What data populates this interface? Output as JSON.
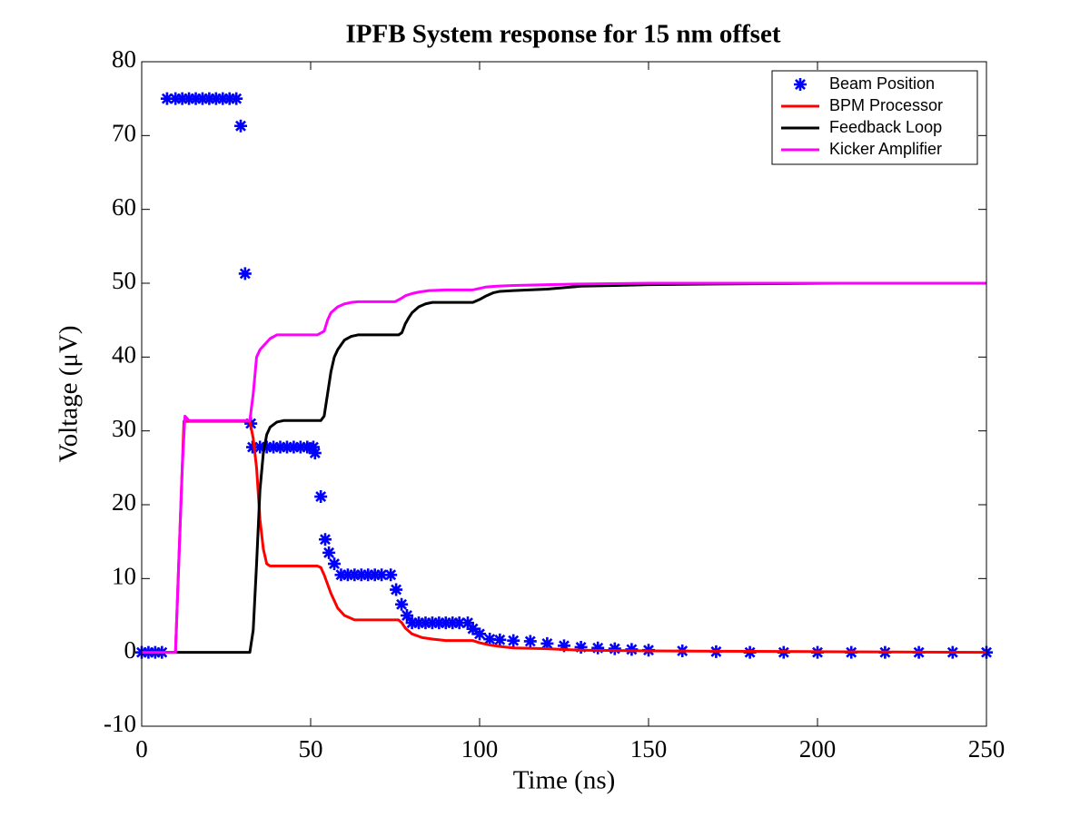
{
  "chart_data": {
    "type": "line",
    "title": "IPFB System response for 15 nm offset",
    "x_label": "Time (ns)",
    "y_label": "Voltage (μV)",
    "xlim": [
      0,
      250
    ],
    "xticks": [
      0,
      50,
      100,
      150,
      200,
      250
    ],
    "ylim": [
      -10,
      80
    ],
    "yticks": [
      -10,
      0,
      10,
      20,
      30,
      40,
      50,
      60,
      70,
      80
    ],
    "grid": false,
    "legend": "upper right",
    "series": [
      {
        "name": "Beam Position",
        "color": "#0000ff",
        "marker": "*",
        "linestyle": "none",
        "x": [
          0,
          2,
          4,
          6,
          7.5,
          10,
          12,
          14,
          16,
          18,
          20,
          22,
          24,
          26,
          28,
          29.3,
          30.6,
          32.3,
          32.8,
          35,
          37,
          39,
          41,
          43,
          45,
          47,
          49,
          50.8,
          51.3,
          53,
          54.3,
          55.4,
          57,
          59,
          61,
          63,
          65,
          67,
          69,
          71,
          73.7,
          75.3,
          76.9,
          78.5,
          80,
          82,
          84,
          86,
          88,
          90,
          92,
          94,
          96.5,
          98,
          100,
          103,
          106,
          110,
          115,
          120,
          125,
          130,
          135,
          140,
          145,
          150,
          160,
          170,
          180,
          190,
          200,
          210,
          220,
          230,
          240,
          250
        ],
        "values": [
          0,
          0,
          0,
          0,
          75,
          75,
          75,
          75,
          75,
          75,
          75,
          75,
          75,
          75,
          75,
          71.3,
          51.3,
          31,
          27.8,
          27.8,
          27.8,
          27.8,
          27.8,
          27.8,
          27.8,
          27.8,
          27.8,
          27.8,
          27,
          21.1,
          15.3,
          13.5,
          12,
          10.5,
          10.5,
          10.5,
          10.5,
          10.5,
          10.5,
          10.5,
          10.5,
          8.5,
          6.5,
          5,
          4,
          4,
          4,
          4,
          4,
          4,
          4,
          4,
          4,
          3.2,
          2.5,
          1.8,
          1.7,
          1.6,
          1.5,
          1.2,
          0.9,
          0.7,
          0.6,
          0.5,
          0.4,
          0.3,
          0.2,
          0.1,
          0,
          0,
          0,
          0,
          0,
          0,
          0,
          0
        ]
      },
      {
        "name": "BPM Processor",
        "color": "#ff0000",
        "linestyle": "solid",
        "x": [
          0,
          10,
          12.5,
          32,
          33,
          34,
          35,
          36,
          37,
          38,
          52,
          53,
          54,
          56,
          58,
          60,
          63,
          76,
          77,
          78,
          80,
          83,
          86,
          90,
          98,
          100,
          103,
          106,
          110,
          120,
          130,
          150,
          200,
          250
        ],
        "values": [
          0,
          0,
          31.3,
          31.3,
          29,
          25,
          18,
          14,
          12,
          11.7,
          11.7,
          11.5,
          10.5,
          8,
          6,
          5,
          4.4,
          4.4,
          4,
          3.3,
          2.5,
          2,
          1.8,
          1.6,
          1.6,
          1.3,
          1,
          0.8,
          0.6,
          0.5,
          0.3,
          0.2,
          0.1,
          0
        ]
      },
      {
        "name": "Feedback Loop",
        "color": "#000000",
        "linestyle": "solid",
        "x": [
          0,
          32,
          33,
          34,
          35,
          36,
          37,
          38,
          40,
          42,
          53,
          54,
          55,
          56,
          57,
          58,
          60,
          62,
          64,
          66,
          76,
          77,
          78,
          79,
          80,
          82,
          84,
          86,
          88,
          90,
          98,
          100,
          102,
          104,
          106,
          110,
          120,
          125,
          130,
          140,
          150,
          170,
          207
        ],
        "values": [
          0,
          0,
          3,
          12,
          22,
          27,
          29.5,
          30.5,
          31.2,
          31.4,
          31.4,
          32,
          35,
          38,
          40,
          41,
          42.3,
          42.8,
          43,
          43,
          43,
          43.3,
          44.5,
          45.3,
          46,
          46.8,
          47.2,
          47.4,
          47.4,
          47.4,
          47.4,
          47.8,
          48.3,
          48.7,
          48.9,
          49,
          49.2,
          49.4,
          49.6,
          49.7,
          49.8,
          49.9,
          50
        ]
      },
      {
        "name": "Kicker Amplifier",
        "color": "#ff00ff",
        "linestyle": "solid",
        "x": [
          0,
          10,
          12,
          12.8,
          14,
          32,
          33,
          34,
          35,
          36,
          38,
          40,
          42,
          52,
          54,
          55,
          56,
          58,
          60,
          62,
          64,
          66,
          70,
          75,
          77,
          78,
          80,
          82,
          85,
          90,
          98,
          100,
          102,
          105,
          110,
          120,
          130,
          150,
          250
        ],
        "values": [
          0,
          0,
          25,
          32,
          31.4,
          31.4,
          35,
          40,
          41,
          41.5,
          42.5,
          43,
          43,
          43,
          43.5,
          45,
          46,
          46.8,
          47.2,
          47.4,
          47.5,
          47.5,
          47.5,
          47.5,
          48,
          48.3,
          48.6,
          48.8,
          49,
          49.1,
          49.1,
          49.3,
          49.5,
          49.6,
          49.7,
          49.8,
          49.9,
          50,
          50
        ]
      }
    ]
  }
}
